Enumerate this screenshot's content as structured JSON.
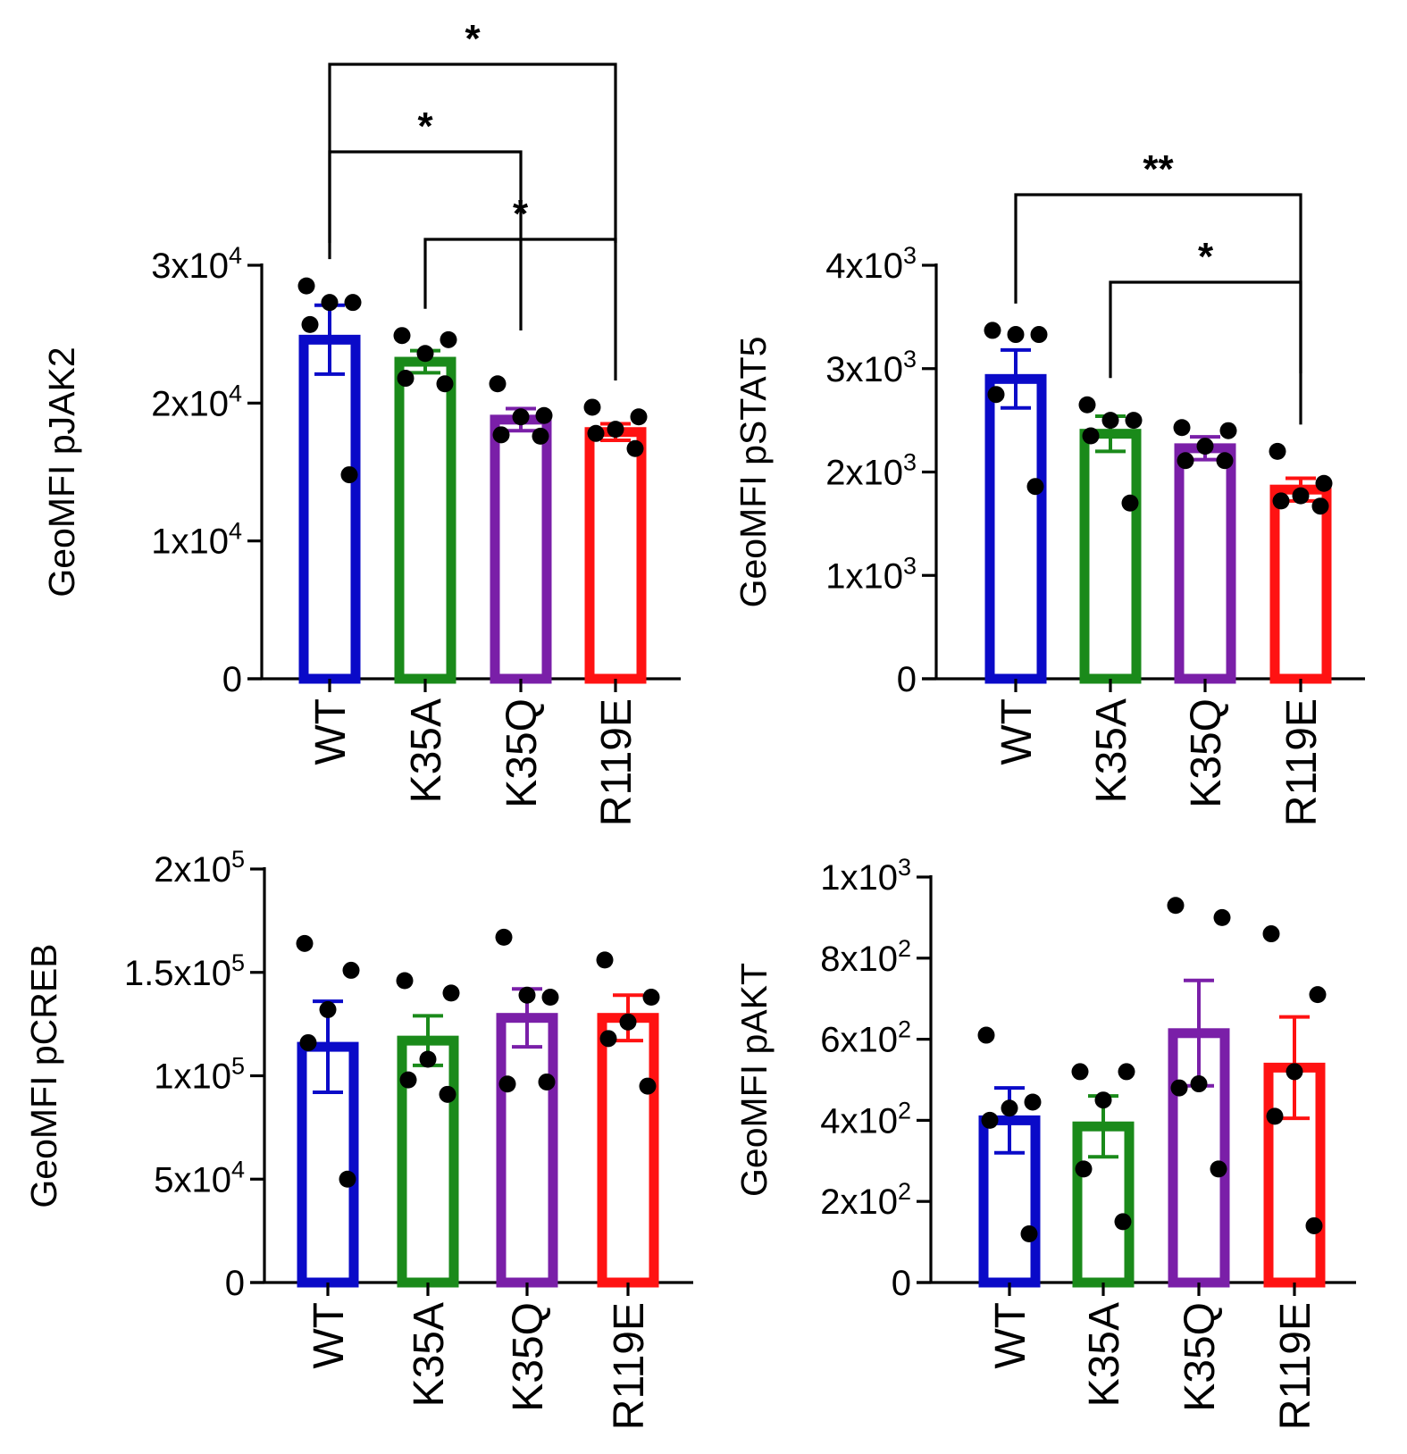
{
  "colors": {
    "WT": "#0a0ac8",
    "K35A": "#1a8a1a",
    "K35Q": "#7a1fa8",
    "R119E": "#ff1212"
  },
  "chart_data": [
    {
      "type": "bar",
      "ylabel": "GeoMFI pJAK2",
      "ylim": [
        0,
        30000
      ],
      "yticks": [
        {
          "v": 0,
          "base": "0",
          "exp": ""
        },
        {
          "v": 10000,
          "base": "1x10",
          "exp": "4"
        },
        {
          "v": 20000,
          "base": "2x10",
          "exp": "4"
        },
        {
          "v": 30000,
          "base": "3x10",
          "exp": "4"
        }
      ],
      "categories": [
        "WT",
        "K35A",
        "K35Q",
        "R119E"
      ],
      "values": [
        24600,
        23000,
        18800,
        17900
      ],
      "sem": [
        2500,
        800,
        800,
        600
      ],
      "points": [
        [
          28500,
          27300,
          27300,
          25700,
          14800
        ],
        [
          24900,
          24600,
          23600,
          21800,
          21400
        ],
        [
          21400,
          19100,
          19000,
          17700,
          17600
        ],
        [
          19700,
          19000,
          18100,
          17800,
          16700
        ]
      ],
      "significance": [
        {
          "from": 0,
          "to": 3,
          "label": "*"
        },
        {
          "from": 0,
          "to": 2,
          "label": "*"
        },
        {
          "from": 1,
          "to": 3,
          "label": "*"
        }
      ]
    },
    {
      "type": "bar",
      "ylabel": "GeoMFI pSTAT5",
      "ylim": [
        0,
        4000
      ],
      "yticks": [
        {
          "v": 0,
          "base": "0",
          "exp": ""
        },
        {
          "v": 1000,
          "base": "1x10",
          "exp": "3"
        },
        {
          "v": 2000,
          "base": "2x10",
          "exp": "3"
        },
        {
          "v": 3000,
          "base": "3x10",
          "exp": "3"
        },
        {
          "v": 4000,
          "base": "4x10",
          "exp": "3"
        }
      ],
      "categories": [
        "WT",
        "K35A",
        "K35Q",
        "R119E"
      ],
      "values": [
        2900,
        2370,
        2230,
        1830
      ],
      "sem": [
        280,
        170,
        110,
        110
      ],
      "points": [
        [
          3370,
          3330,
          3330,
          2750,
          1860
        ],
        [
          2650,
          2500,
          2500,
          2350,
          1700
        ],
        [
          2430,
          2400,
          2250,
          2110,
          2110
        ],
        [
          2200,
          1890,
          1770,
          1720,
          1670
        ]
      ],
      "significance": [
        {
          "from": 0,
          "to": 3,
          "label": "**"
        },
        {
          "from": 1,
          "to": 3,
          "label": "*"
        }
      ]
    },
    {
      "type": "bar",
      "ylabel": "GeoMFI pCREB",
      "ylim": [
        0,
        200000
      ],
      "yticks": [
        {
          "v": 0,
          "base": "0",
          "exp": ""
        },
        {
          "v": 50000,
          "base": "5x10",
          "exp": "4"
        },
        {
          "v": 100000,
          "base": "1x10",
          "exp": "5"
        },
        {
          "v": 150000,
          "base": "1.5x10",
          "exp": "5"
        },
        {
          "v": 200000,
          "base": "2x10",
          "exp": "5"
        }
      ],
      "categories": [
        "WT",
        "K35A",
        "K35Q",
        "R119E"
      ],
      "values": [
        114000,
        117000,
        128000,
        128000
      ],
      "sem": [
        22000,
        12000,
        14000,
        11000
      ],
      "points": [
        [
          164000,
          151000,
          132000,
          116000,
          50000
        ],
        [
          146000,
          140000,
          108000,
          98000,
          91000
        ],
        [
          167000,
          138000,
          139000,
          96000,
          97000
        ],
        [
          156000,
          138000,
          126000,
          118000,
          95000
        ]
      ],
      "significance": []
    },
    {
      "type": "bar",
      "ylabel": "GeoMFI pAKT",
      "ylim": [
        0,
        1000
      ],
      "yticks": [
        {
          "v": 0,
          "base": "0",
          "exp": ""
        },
        {
          "v": 200,
          "base": "2x10",
          "exp": "2"
        },
        {
          "v": 400,
          "base": "4x10",
          "exp": "2"
        },
        {
          "v": 600,
          "base": "6x10",
          "exp": "2"
        },
        {
          "v": 800,
          "base": "8x10",
          "exp": "2"
        },
        {
          "v": 1000,
          "base": "1x10",
          "exp": "3"
        }
      ],
      "categories": [
        "WT",
        "K35A",
        "K35Q",
        "R119E"
      ],
      "values": [
        400,
        385,
        615,
        530
      ],
      "sem": [
        80,
        75,
        130,
        125
      ],
      "points": [
        [
          610,
          445,
          430,
          400,
          120
        ],
        [
          520,
          520,
          450,
          280,
          150
        ],
        [
          930,
          900,
          490,
          480,
          280
        ],
        [
          860,
          710,
          520,
          410,
          140
        ]
      ],
      "significance": []
    }
  ]
}
